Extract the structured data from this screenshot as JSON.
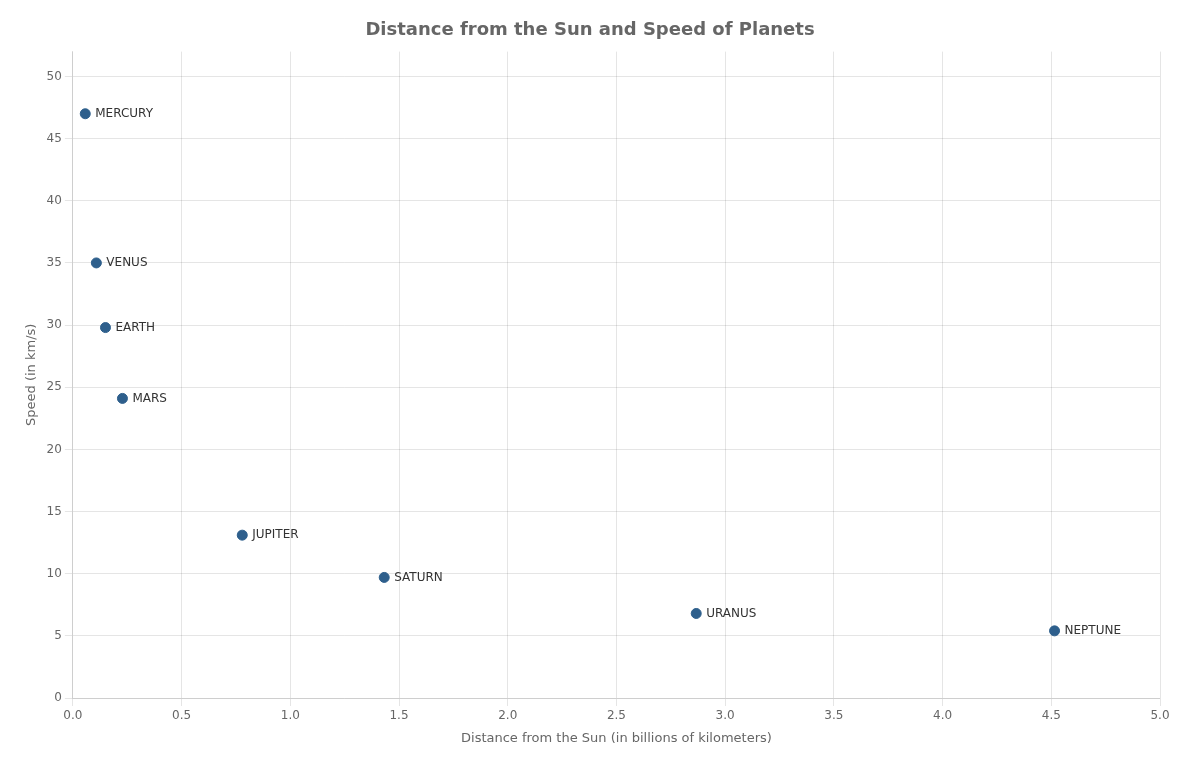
{
  "chart_data": {
    "type": "scatter",
    "title": "Distance from the Sun and Speed of Planets",
    "xlabel": "Distance from the Sun (in billions of kilometers)",
    "ylabel": "Speed (in km/s)",
    "x": [
      0.057,
      0.108,
      0.15,
      0.228,
      0.779,
      1.432,
      2.867,
      4.515
    ],
    "values": [
      47.0,
      35.0,
      29.8,
      24.1,
      13.1,
      9.7,
      6.8,
      5.4
    ],
    "annotations": [
      "MERCURY",
      "VENUS",
      "EARTH",
      "MARS",
      "JUPITER",
      "SATURN",
      "URANUS",
      "NEPTUNE"
    ],
    "color": "#2e5f8c",
    "xlim": [
      0,
      5
    ],
    "ylim": [
      0,
      52
    ],
    "xticks": [
      {
        "value": 0,
        "label": "0.0"
      },
      {
        "value": 0.5,
        "label": "0.5"
      },
      {
        "value": 1,
        "label": "1.0"
      },
      {
        "value": 1.5,
        "label": "1.5"
      },
      {
        "value": 2,
        "label": "2.0"
      },
      {
        "value": 2.5,
        "label": "2.5"
      },
      {
        "value": 3,
        "label": "3.0"
      },
      {
        "value": 3.5,
        "label": "3.5"
      },
      {
        "value": 4,
        "label": "4.0"
      },
      {
        "value": 4.5,
        "label": "4.5"
      },
      {
        "value": 5,
        "label": "5.0"
      }
    ],
    "yticks": [
      0,
      5,
      10,
      15,
      20,
      25,
      30,
      35,
      40,
      45,
      50
    ],
    "grid": true
  }
}
